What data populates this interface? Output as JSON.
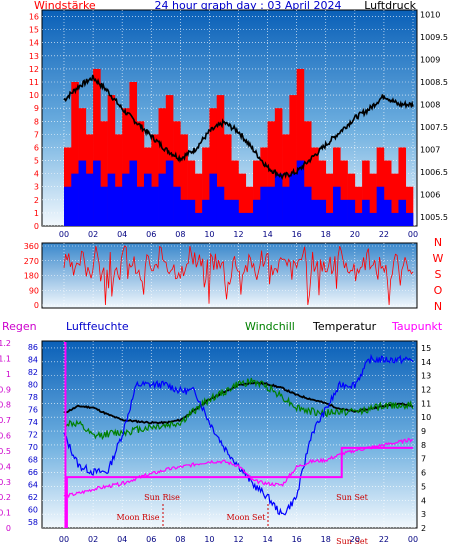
{
  "chart_data": [
    {
      "type": "bar",
      "title": "24 hour graph day : 03 April 2024",
      "left_label": "Windstärke",
      "right_label": "Luftdruck",
      "x_ticks": [
        "00",
        "02",
        "04",
        "06",
        "08",
        "10",
        "12",
        "14",
        "16",
        "18",
        "20",
        "22",
        "00"
      ],
      "y_ticks_left": [
        "0",
        "1",
        "2",
        "3",
        "4",
        "5",
        "6",
        "7",
        "8",
        "9",
        "10",
        "11",
        "12",
        "13",
        "14",
        "15",
        "16"
      ],
      "y_ticks_right": [
        "1005.5",
        "1006",
        "1006.5",
        "1007",
        "1007.5",
        "1008",
        "1008.5",
        "1009",
        "1009.5",
        "1010"
      ],
      "ylim_left": [
        0,
        16.5
      ],
      "ylim_right": [
        1005.3,
        1010.1
      ],
      "series": [
        {
          "name": "Windstärke (gusts)",
          "color": "#ff0000",
          "values": [
            6,
            11,
            9,
            7,
            12,
            8,
            10,
            7,
            9,
            11,
            8,
            6,
            7,
            9,
            10,
            8,
            7,
            5,
            4,
            6,
            9,
            10,
            7,
            5,
            4,
            3,
            5,
            6,
            8,
            9,
            7,
            10,
            12,
            8,
            6,
            5,
            4,
            6,
            5,
            4,
            3,
            5,
            4,
            6,
            5,
            4,
            6,
            3
          ]
        },
        {
          "name": "Windstärke (average)",
          "color": "#0000ff",
          "values": [
            3,
            4,
            5,
            4,
            5,
            3,
            4,
            3,
            4,
            5,
            3,
            4,
            3,
            4,
            5,
            3,
            2,
            2,
            1,
            2,
            4,
            3,
            2,
            2,
            1,
            1,
            2,
            3,
            3,
            4,
            3,
            4,
            5,
            3,
            2,
            2,
            1,
            3,
            2,
            2,
            1,
            2,
            1,
            3,
            2,
            1,
            2,
            1
          ]
        },
        {
          "name": "Luftdruck",
          "color": "#000000",
          "x": [
            0,
            1,
            2,
            3,
            4,
            5,
            6,
            7,
            8,
            9,
            10,
            11,
            12,
            13,
            14,
            15,
            16,
            17,
            18,
            19,
            20,
            21,
            22,
            23,
            24
          ],
          "values": [
            1008.1,
            1008.4,
            1008.6,
            1008.3,
            1007.9,
            1007.6,
            1007.3,
            1007.0,
            1006.8,
            1007.0,
            1007.4,
            1007.6,
            1007.4,
            1007.0,
            1006.6,
            1006.4,
            1006.5,
            1006.8,
            1007.1,
            1007.4,
            1007.7,
            1007.9,
            1008.2,
            1008.0,
            1008.0
          ]
        }
      ]
    },
    {
      "type": "line",
      "title": "",
      "left_ticks": [
        "0",
        "90",
        "180",
        "270",
        "360"
      ],
      "right_label_letters": [
        "N",
        "W",
        "S",
        "O",
        "N"
      ],
      "ylim": [
        0,
        360
      ],
      "series": [
        {
          "name": "Windrichtung",
          "color": "#ff0000",
          "values": [
            250,
            200,
            280,
            230,
            300,
            190,
            260,
            220,
            310,
            240,
            180,
            270,
            210,
            290,
            250,
            230,
            200,
            300,
            260,
            220,
            280,
            240,
            190,
            270,
            230,
            250,
            210,
            300,
            180,
            260,
            240,
            220,
            290,
            200,
            270,
            250,
            230,
            310,
            210,
            260,
            240,
            280,
            220,
            250,
            200,
            270,
            230,
            260
          ]
        }
      ]
    },
    {
      "type": "line",
      "title": "",
      "header_labels": {
        "rain": "Regen",
        "humidity": "Luftfeuchte",
        "windchill": "Windchill",
        "temperature": "Temperatur",
        "dewpoint": "Taupunkt"
      },
      "x_ticks": [
        "00",
        "02",
        "04",
        "06",
        "08",
        "10",
        "12",
        "14",
        "16",
        "18",
        "20",
        "22",
        "00"
      ],
      "rain_ticks": [
        "0",
        "0.1",
        "0.2",
        "0.3",
        "0.4",
        "0.5",
        "0.6",
        "0.7",
        "0.8",
        "0.9",
        "1",
        "1.1",
        "1.2"
      ],
      "humidity_ticks": [
        "58",
        "60",
        "62",
        "64",
        "66",
        "68",
        "70",
        "72",
        "74",
        "76",
        "78",
        "80",
        "82",
        "84",
        "86"
      ],
      "temperature_ticks": [
        "2",
        "3",
        "4",
        "5",
        "6",
        "7",
        "8",
        "9",
        "10",
        "11",
        "12",
        "13",
        "14",
        "15"
      ],
      "ylim_temperature": [
        2,
        15.5
      ],
      "ylim_humidity": [
        57,
        87
      ],
      "series": [
        {
          "name": "Temperatur",
          "color": "#000000",
          "x": [
            0,
            1,
            2,
            3,
            4,
            5,
            6,
            7,
            8,
            9,
            10,
            11,
            12,
            13,
            14,
            15,
            16,
            17,
            18,
            19,
            20,
            21,
            22,
            23,
            24
          ],
          "values": [
            10.3,
            10.8,
            10.7,
            10.2,
            9.8,
            9.7,
            9.6,
            9.6,
            9.8,
            10.5,
            11.3,
            11.8,
            12.3,
            12.5,
            12.4,
            12.1,
            11.6,
            11.3,
            11.0,
            10.6,
            10.4,
            10.6,
            10.8,
            11.0,
            10.8
          ]
        },
        {
          "name": "Windchill",
          "color": "#008000",
          "x": [
            0,
            1,
            2,
            3,
            4,
            5,
            6,
            7,
            8,
            9,
            10,
            11,
            12,
            13,
            14,
            15,
            16,
            17,
            18,
            19,
            20,
            21,
            22,
            23,
            24
          ],
          "values": [
            9.6,
            9.5,
            8.6,
            8.8,
            8.9,
            9.1,
            9.3,
            9.4,
            9.6,
            10.5,
            11.3,
            11.8,
            12.4,
            12.6,
            12.2,
            11.5,
            10.7,
            10.4,
            10.3,
            10.4,
            10.4,
            10.6,
            10.8,
            10.9,
            10.8
          ]
        },
        {
          "name": "Luftfeuchte",
          "color": "#0000ff",
          "x": [
            0,
            1,
            2,
            3,
            4,
            5,
            6,
            7,
            8,
            9,
            10,
            11,
            12,
            13,
            14,
            15,
            16,
            17,
            18,
            19,
            20,
            21,
            22,
            23,
            24
          ],
          "values": [
            72,
            67,
            66,
            66,
            72,
            80,
            80,
            80,
            79,
            79,
            74,
            70,
            67,
            64,
            62,
            59,
            62,
            72,
            76,
            80,
            80,
            84,
            84,
            84,
            84
          ]
        },
        {
          "name": "Taupunkt",
          "color": "#ff00ff",
          "x": [
            0,
            1,
            2,
            3,
            4,
            5,
            6,
            7,
            8,
            9,
            10,
            11,
            12,
            13,
            14,
            15,
            16,
            17,
            18,
            19,
            20,
            21,
            22,
            23,
            24
          ],
          "values": [
            4.3,
            4.5,
            4.8,
            5.0,
            5.2,
            5.6,
            5.9,
            6.2,
            6.4,
            6.6,
            6.8,
            6.8,
            6.5,
            5.4,
            5.2,
            5.1,
            6.4,
            6.8,
            6.9,
            7.3,
            7.6,
            7.8,
            8.0,
            8.2,
            8.4
          ]
        },
        {
          "name": "Regen",
          "color": "#ff00ff",
          "x": [
            0,
            0.1,
            0.2,
            19.0,
            19.1,
            22.6,
            24
          ],
          "values": [
            1.2,
            0.0,
            0.33,
            0.33,
            0.52,
            0.52,
            0.52
          ]
        }
      ],
      "annotations": [
        "Sun Rise",
        "Moon Rise",
        "Moon Set",
        "Sun Set",
        "Sun Set"
      ]
    }
  ]
}
